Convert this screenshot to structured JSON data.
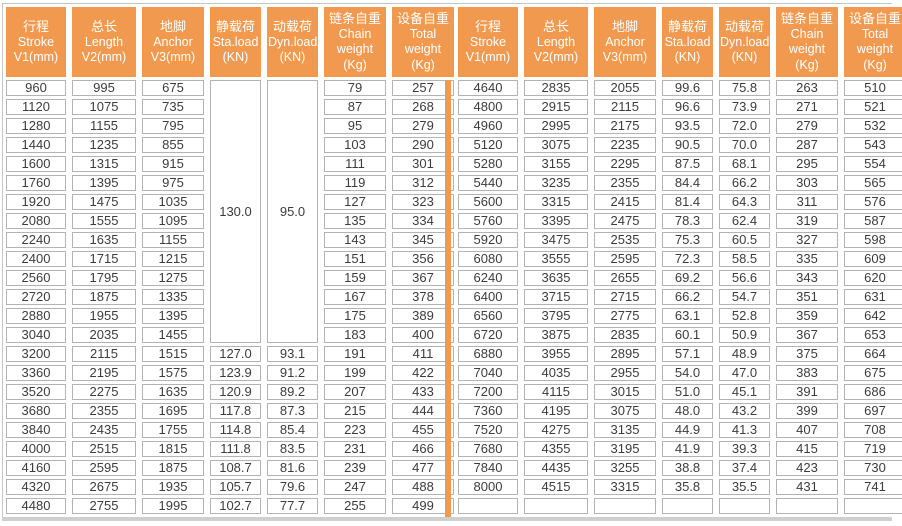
{
  "colors": {
    "header_orange": "#F0994F",
    "divider_orange": "#F0994F",
    "cell_border": "#b3b3b3",
    "cell_text": "#3c3c3c",
    "header_text": "#ffffff",
    "outer_line": "#c6c6c6",
    "bottom_band": "#cfcfcf"
  },
  "table": {
    "columns": [
      {
        "cn": "行程",
        "en": "Stroke",
        "unit": "V1(mm)"
      },
      {
        "cn": "总长",
        "en": "Length",
        "unit": "V2(mm)"
      },
      {
        "cn": "地脚",
        "en": "Anchor",
        "unit": "V3(mm)"
      },
      {
        "cn": "静载荷",
        "en": "Sta.load",
        "unit": "(KN)"
      },
      {
        "cn": "动载荷",
        "en": "Dyn.load",
        "unit": "(KN)"
      },
      {
        "cn": "链条自重",
        "en": "Chain weight",
        "unit": "(Kg)"
      },
      {
        "cn": "设备自重",
        "en": "Total weight",
        "unit": "(Kg)"
      }
    ],
    "left": {
      "merged": {
        "sta_load": "130.0",
        "dyn_load": "95.0",
        "rowspan": 14
      },
      "rows": [
        [
          "960",
          "995",
          "675",
          null,
          null,
          "79",
          "257"
        ],
        [
          "1120",
          "1075",
          "735",
          null,
          null,
          "87",
          "268"
        ],
        [
          "1280",
          "1155",
          "795",
          null,
          null,
          "95",
          "279"
        ],
        [
          "1440",
          "1235",
          "855",
          null,
          null,
          "103",
          "290"
        ],
        [
          "1600",
          "1315",
          "915",
          null,
          null,
          "111",
          "301"
        ],
        [
          "1760",
          "1395",
          "975",
          null,
          null,
          "119",
          "312"
        ],
        [
          "1920",
          "1475",
          "1035",
          null,
          null,
          "127",
          "323"
        ],
        [
          "2080",
          "1555",
          "1095",
          null,
          null,
          "135",
          "334"
        ],
        [
          "2240",
          "1635",
          "1155",
          null,
          null,
          "143",
          "345"
        ],
        [
          "2400",
          "1715",
          "1215",
          null,
          null,
          "151",
          "356"
        ],
        [
          "2560",
          "1795",
          "1275",
          null,
          null,
          "159",
          "367"
        ],
        [
          "2720",
          "1875",
          "1335",
          null,
          null,
          "167",
          "378"
        ],
        [
          "2880",
          "1955",
          "1395",
          null,
          null,
          "175",
          "389"
        ],
        [
          "3040",
          "2035",
          "1455",
          null,
          null,
          "183",
          "400"
        ],
        [
          "3200",
          "2115",
          "1515",
          "127.0",
          "93.1",
          "191",
          "411"
        ],
        [
          "3360",
          "2195",
          "1575",
          "123.9",
          "91.2",
          "199",
          "422"
        ],
        [
          "3520",
          "2275",
          "1635",
          "120.9",
          "89.2",
          "207",
          "433"
        ],
        [
          "3680",
          "2355",
          "1695",
          "117.8",
          "87.3",
          "215",
          "444"
        ],
        [
          "3840",
          "2435",
          "1755",
          "114.8",
          "85.4",
          "223",
          "455"
        ],
        [
          "4000",
          "2515",
          "1815",
          "111.8",
          "83.5",
          "231",
          "466"
        ],
        [
          "4160",
          "2595",
          "1875",
          "108.7",
          "81.6",
          "239",
          "477"
        ],
        [
          "4320",
          "2675",
          "1935",
          "105.7",
          "79.6",
          "247",
          "488"
        ],
        [
          "4480",
          "2755",
          "1995",
          "102.7",
          "77.7",
          "255",
          "499"
        ]
      ]
    },
    "right": {
      "rows": [
        [
          "4640",
          "2835",
          "2055",
          "99.6",
          "75.8",
          "263",
          "510"
        ],
        [
          "4800",
          "2915",
          "2115",
          "96.6",
          "73.9",
          "271",
          "521"
        ],
        [
          "4960",
          "2995",
          "2175",
          "93.5",
          "72.0",
          "279",
          "532"
        ],
        [
          "5120",
          "3075",
          "2235",
          "90.5",
          "70.0",
          "287",
          "543"
        ],
        [
          "5280",
          "3155",
          "2295",
          "87.5",
          "68.1",
          "295",
          "554"
        ],
        [
          "5440",
          "3235",
          "2355",
          "84.4",
          "66.2",
          "303",
          "565"
        ],
        [
          "5600",
          "3315",
          "2415",
          "81.4",
          "64.3",
          "311",
          "576"
        ],
        [
          "5760",
          "3395",
          "2475",
          "78.3",
          "62.4",
          "319",
          "587"
        ],
        [
          "5920",
          "3475",
          "2535",
          "75.3",
          "60.5",
          "327",
          "598"
        ],
        [
          "6080",
          "3555",
          "2595",
          "72.3",
          "58.5",
          "335",
          "609"
        ],
        [
          "6240",
          "3635",
          "2655",
          "69.2",
          "56.6",
          "343",
          "620"
        ],
        [
          "6400",
          "3715",
          "2715",
          "66.2",
          "54.7",
          "351",
          "631"
        ],
        [
          "6560",
          "3795",
          "2775",
          "63.1",
          "52.8",
          "359",
          "642"
        ],
        [
          "6720",
          "3875",
          "2835",
          "60.1",
          "50.9",
          "367",
          "653"
        ],
        [
          "6880",
          "3955",
          "2895",
          "57.1",
          "48.9",
          "375",
          "664"
        ],
        [
          "7040",
          "4035",
          "2955",
          "54.0",
          "47.0",
          "383",
          "675"
        ],
        [
          "7200",
          "4115",
          "3015",
          "51.0",
          "45.1",
          "391",
          "686"
        ],
        [
          "7360",
          "4195",
          "3075",
          "48.0",
          "43.2",
          "399",
          "697"
        ],
        [
          "7520",
          "4275",
          "3135",
          "44.9",
          "41.3",
          "407",
          "708"
        ],
        [
          "7680",
          "4355",
          "3195",
          "41.9",
          "39.3",
          "415",
          "719"
        ],
        [
          "7840",
          "4435",
          "3255",
          "38.8",
          "37.4",
          "423",
          "730"
        ],
        [
          "8000",
          "4515",
          "3315",
          "35.8",
          "35.5",
          "431",
          "741"
        ],
        [
          "",
          "",
          "",
          "",
          "",
          "",
          ""
        ]
      ]
    }
  }
}
